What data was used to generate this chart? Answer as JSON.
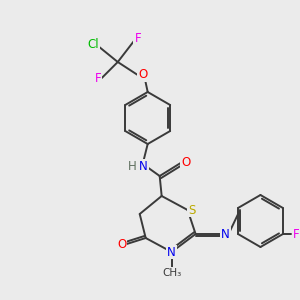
{
  "background_color": "#ebebeb",
  "bond_color": "#3a3a3a",
  "atom_colors": {
    "Cl": "#00bb00",
    "F": "#ee00ee",
    "O": "#ff0000",
    "N": "#0000ee",
    "S": "#bbaa00",
    "H": "#607060",
    "C": "#3a3a3a"
  },
  "figsize": [
    3.0,
    3.0
  ],
  "dpi": 100
}
